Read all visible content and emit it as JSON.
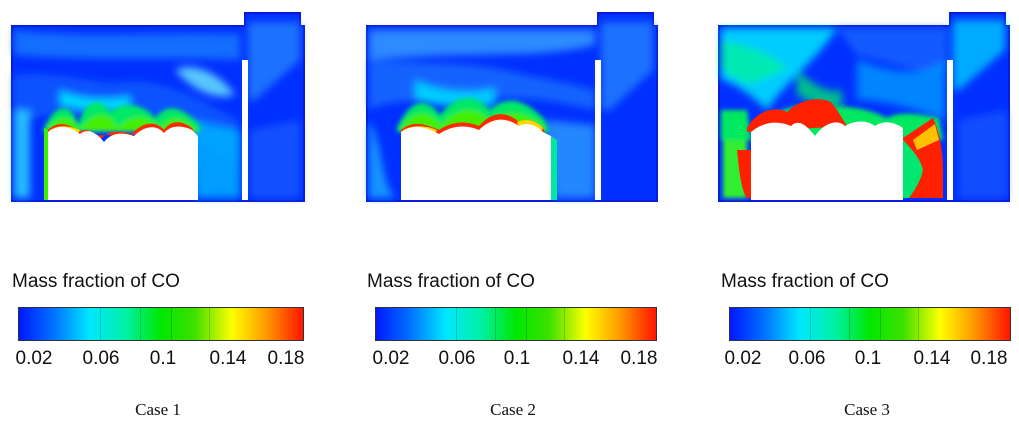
{
  "colors": {
    "cold": "#0026ff",
    "boundary": "#0a1bd6",
    "hot": "#ff1a00"
  },
  "colorbar": {
    "title": "Mass fraction of CO",
    "ticks": [
      "0.02",
      "0.06",
      "0.1",
      "0.14",
      "0.18"
    ]
  },
  "cases": [
    {
      "label": "Case 1"
    },
    {
      "label": "Case 2"
    },
    {
      "label": "Case 3"
    }
  ]
}
